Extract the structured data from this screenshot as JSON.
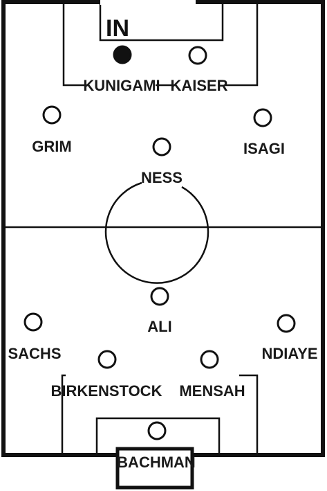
{
  "badge": "IN",
  "colors": {
    "line": "#111111",
    "background": "#ffffff",
    "marker_empty": "#ffffff",
    "marker_filled": "#111111"
  },
  "players": [
    {
      "name": "KUNIGAMI",
      "filled": true
    },
    {
      "name": "KAISER",
      "filled": false
    },
    {
      "name": "GRIM",
      "filled": false
    },
    {
      "name": "ISAGI",
      "filled": false
    },
    {
      "name": "NESS",
      "filled": false
    },
    {
      "name": "ALI",
      "filled": false
    },
    {
      "name": "SACHS",
      "filled": false
    },
    {
      "name": "NDIAYE",
      "filled": false
    },
    {
      "name": "BIRKENSTOCK",
      "filled": false
    },
    {
      "name": "MENSAH",
      "filled": false
    },
    {
      "name": "BACHMAN",
      "filled": false
    }
  ]
}
